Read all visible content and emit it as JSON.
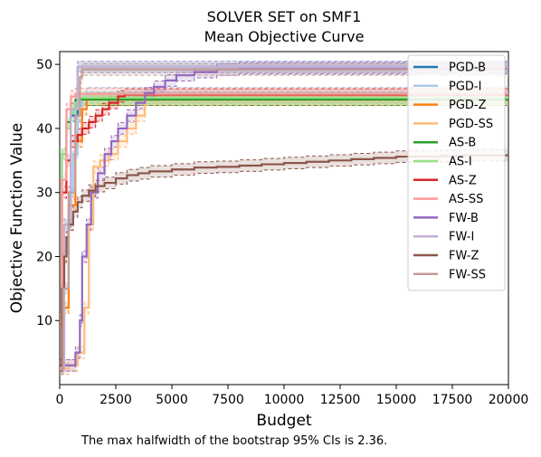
{
  "chart_data": {
    "type": "line",
    "title": "SOLVER SET on SMF1",
    "subtitle": "Mean Objective Curve",
    "xlabel": "Budget",
    "ylabel": "Objective Function Value",
    "xlim": [
      0,
      20000
    ],
    "ylim": [
      0,
      52
    ],
    "xticks": [
      0,
      2500,
      5000,
      7500,
      10000,
      12500,
      15000,
      17500,
      20000
    ],
    "yticks": [
      10,
      20,
      30,
      40,
      50
    ],
    "legend_position": "top-right",
    "grid": false,
    "series": [
      {
        "name": "PGD-B",
        "color": "#1f77b4",
        "x": [
          0,
          200,
          500,
          800,
          20000
        ],
        "y": [
          2.5,
          25,
          42,
          49.6,
          49.6
        ]
      },
      {
        "name": "PGD-I",
        "color": "#aec7e8",
        "x": [
          0,
          150,
          400,
          600,
          800,
          1000,
          1200,
          20000
        ],
        "y": [
          2.5,
          15,
          30,
          36,
          41,
          44.5,
          45.5,
          45.5
        ]
      },
      {
        "name": "PGD-Z",
        "color": "#ff7f0e",
        "x": [
          0,
          150,
          400,
          700,
          1000,
          1200,
          20000
        ],
        "y": [
          2.5,
          12,
          28,
          38,
          43,
          44.5,
          44.5
        ]
      },
      {
        "name": "PGD-SS",
        "color": "#ffbb78",
        "x": [
          0,
          400,
          800,
          1100,
          1300,
          1500,
          1800,
          2200,
          2600,
          3000,
          3400,
          3800,
          20000
        ],
        "y": [
          2.5,
          3,
          5,
          12,
          25,
          34,
          35,
          36,
          38,
          40,
          42,
          44.5,
          44.5
        ]
      },
      {
        "name": "AS-B",
        "color": "#2ca02c",
        "x": [
          0,
          100,
          300,
          500,
          700,
          1000,
          20000
        ],
        "y": [
          10,
          36,
          41,
          43,
          44.5,
          44.5,
          44.5
        ]
      },
      {
        "name": "AS-I",
        "color": "#98df8a",
        "x": [
          0,
          100,
          300,
          500,
          700,
          900,
          20000
        ],
        "y": [
          10,
          36,
          40,
          42.5,
          44,
          44.8,
          44.8
        ]
      },
      {
        "name": "AS-Z",
        "color": "#d62728",
        "x": [
          0,
          100,
          300,
          500,
          800,
          1000,
          1300,
          1600,
          1900,
          2200,
          2600,
          2900,
          20000
        ],
        "y": [
          10,
          30,
          35,
          38,
          39,
          40,
          41,
          42,
          43,
          44,
          45,
          45.3,
          45.3
        ]
      },
      {
        "name": "AS-SS",
        "color": "#ff9896",
        "x": [
          0,
          100,
          300,
          500,
          700,
          20000
        ],
        "y": [
          10,
          32,
          43,
          45,
          45.4,
          45.4
        ]
      },
      {
        "name": "FW-B",
        "color": "#9467bd",
        "x": [
          0,
          400,
          700,
          900,
          1000,
          1200,
          1400,
          1700,
          2000,
          2300,
          2600,
          3000,
          3400,
          3800,
          4200,
          4700,
          5200,
          6000,
          7000,
          8000,
          20000
        ],
        "y": [
          3,
          3,
          5,
          10,
          20,
          25,
          30,
          33,
          36,
          38,
          40,
          42,
          44,
          45.5,
          46.5,
          47.5,
          48.3,
          48.8,
          49.2,
          49.4,
          49.5
        ]
      },
      {
        "name": "FW-I",
        "color": "#c5b0d5",
        "x": [
          0,
          200,
          500,
          800,
          20000
        ],
        "y": [
          2.5,
          25,
          43,
          49.6,
          49.6
        ]
      },
      {
        "name": "FW-Z",
        "color": "#8c564b",
        "x": [
          0,
          100,
          200,
          300,
          400,
          600,
          800,
          1000,
          1300,
          1600,
          2000,
          2500,
          3000,
          3500,
          4000,
          5000,
          6000,
          7000,
          8000,
          9000,
          10000,
          11000,
          12000,
          13000,
          14000,
          15000,
          16000,
          17000,
          18000,
          19000,
          20000
        ],
        "y": [
          3,
          15,
          20,
          23,
          25,
          27,
          28.5,
          29.5,
          30.3,
          31,
          31.5,
          32.2,
          32.7,
          33,
          33.3,
          33.6,
          33.9,
          34,
          34.2,
          34.4,
          34.6,
          34.8,
          35,
          35.2,
          35.4,
          35.6,
          35.6,
          35.7,
          35.8,
          35.8,
          35.8
        ]
      },
      {
        "name": "FW-SS",
        "color": "#c49c94",
        "x": [
          0,
          150,
          400,
          700,
          900,
          1000,
          20000
        ],
        "y": [
          2.5,
          15,
          30,
          42,
          48,
          49.2,
          49.2
        ]
      }
    ]
  },
  "footer_note": "The max halfwidth of the bootstrap 95% CIs is 2.36."
}
